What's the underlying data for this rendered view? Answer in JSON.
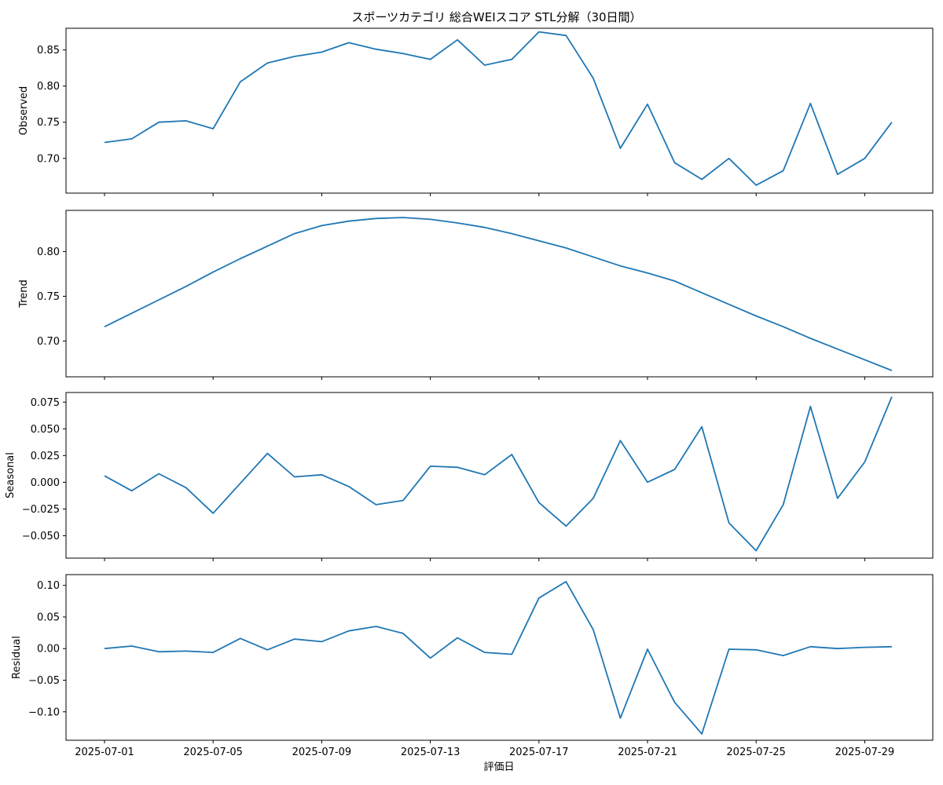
{
  "chart_data": {
    "type": "line",
    "title": "スポーツカテゴリ 総合WEIスコア STL分解（30日間）",
    "xlabel": "評価日",
    "color": "#1f77b4",
    "x": [
      "2025-07-01",
      "2025-07-02",
      "2025-07-03",
      "2025-07-04",
      "2025-07-05",
      "2025-07-06",
      "2025-07-07",
      "2025-07-08",
      "2025-07-09",
      "2025-07-10",
      "2025-07-11",
      "2025-07-12",
      "2025-07-13",
      "2025-07-14",
      "2025-07-15",
      "2025-07-16",
      "2025-07-17",
      "2025-07-18",
      "2025-07-19",
      "2025-07-20",
      "2025-07-21",
      "2025-07-22",
      "2025-07-23",
      "2025-07-24",
      "2025-07-25",
      "2025-07-26",
      "2025-07-27",
      "2025-07-28",
      "2025-07-29",
      "2025-07-30"
    ],
    "x_ticks": [
      "2025-07-01",
      "2025-07-05",
      "2025-07-09",
      "2025-07-13",
      "2025-07-17",
      "2025-07-21",
      "2025-07-25",
      "2025-07-29"
    ],
    "panels": [
      {
        "ylabel": "Observed",
        "ylim": [
          0.652,
          0.88
        ],
        "yticks": [
          "0.70",
          "0.75",
          "0.80",
          "0.85"
        ],
        "ytick_values": [
          0.7,
          0.75,
          0.8,
          0.85
        ],
        "values": [
          0.722,
          0.727,
          0.75,
          0.752,
          0.741,
          0.806,
          0.832,
          0.841,
          0.847,
          0.86,
          0.851,
          0.845,
          0.837,
          0.864,
          0.829,
          0.837,
          0.875,
          0.87,
          0.811,
          0.714,
          0.775,
          0.694,
          0.671,
          0.7,
          0.663,
          0.683,
          0.776,
          0.678,
          0.7,
          0.75
        ]
      },
      {
        "ylabel": "Trend",
        "ylim": [
          0.66,
          0.846
        ],
        "yticks": [
          "0.70",
          "0.75",
          "0.80"
        ],
        "ytick_values": [
          0.7,
          0.75,
          0.8
        ],
        "values": [
          0.716,
          0.731,
          0.746,
          0.761,
          0.777,
          0.792,
          0.806,
          0.82,
          0.829,
          0.834,
          0.837,
          0.838,
          0.836,
          0.832,
          0.827,
          0.82,
          0.812,
          0.804,
          0.794,
          0.784,
          0.776,
          0.767,
          0.754,
          0.741,
          0.728,
          0.716,
          0.703,
          0.691,
          0.679,
          0.667
        ]
      },
      {
        "ylabel": "Seasonal",
        "ylim": [
          -0.071,
          0.084
        ],
        "yticks": [
          "−0.050",
          "−0.025",
          "0.000",
          "0.025",
          "0.050",
          "0.075"
        ],
        "ytick_values": [
          -0.05,
          -0.025,
          0.0,
          0.025,
          0.05,
          0.075
        ],
        "values": [
          0.006,
          -0.008,
          0.008,
          -0.005,
          -0.029,
          -0.001,
          0.027,
          0.005,
          0.007,
          -0.004,
          -0.021,
          -0.017,
          0.015,
          0.014,
          0.007,
          0.026,
          -0.019,
          -0.041,
          -0.015,
          0.039,
          0.0,
          0.012,
          0.052,
          -0.038,
          -0.064,
          -0.021,
          0.071,
          -0.015,
          0.019,
          0.08
        ]
      },
      {
        "ylabel": "Residual",
        "ylim": [
          -0.145,
          0.117
        ],
        "yticks": [
          "−0.10",
          "−0.05",
          "0.00",
          "0.05",
          "0.10"
        ],
        "ytick_values": [
          -0.1,
          -0.05,
          0.0,
          0.05,
          0.1
        ],
        "values": [
          0.0,
          0.004,
          -0.005,
          -0.004,
          -0.006,
          0.016,
          -0.002,
          0.015,
          0.011,
          0.028,
          0.035,
          0.024,
          -0.015,
          0.017,
          -0.006,
          -0.009,
          0.08,
          0.106,
          0.03,
          -0.11,
          -0.001,
          -0.085,
          -0.135,
          -0.001,
          -0.002,
          -0.011,
          0.003,
          0.0,
          0.002,
          0.003
        ]
      }
    ]
  }
}
